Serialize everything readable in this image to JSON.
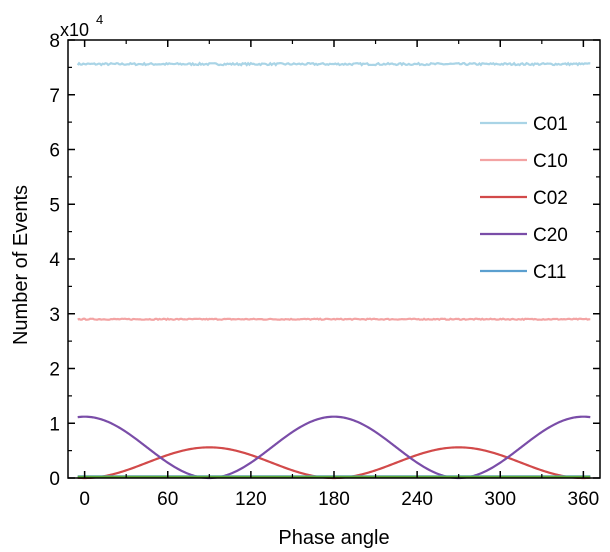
{
  "chart_data": {
    "type": "line",
    "title": "",
    "xlabel": "Phase angle",
    "ylabel": "Number of Events",
    "y_multiplier": {
      "base": "x10",
      "exponent": "4"
    },
    "xlim": [
      -12,
      372
    ],
    "ylim": [
      0,
      80000
    ],
    "xticks": [
      0,
      60,
      120,
      180,
      240,
      300,
      360
    ],
    "yticks": [
      0,
      10000,
      20000,
      30000,
      40000,
      50000,
      60000,
      70000,
      80000
    ],
    "ytick_labels": [
      "0",
      "1",
      "2",
      "3",
      "4",
      "5",
      "6",
      "7",
      "8"
    ],
    "x_range": [
      -5,
      365
    ],
    "legend_position": "right",
    "grid": false,
    "series": [
      {
        "name": "C01",
        "color": "#a9d4e6",
        "model": "constant",
        "params": {
          "value": 75600,
          "noise": 180
        }
      },
      {
        "name": "C10",
        "color": "#f3a3a3",
        "model": "constant",
        "params": {
          "value": 29000,
          "noise": 100
        }
      },
      {
        "name": "C02",
        "color": "#d24a4a",
        "model": "sin2",
        "params": {
          "amplitude": 5600,
          "offset": 0
        }
      },
      {
        "name": "C20",
        "color": "#7a4da8",
        "model": "cos2",
        "params": {
          "amplitude": 11200,
          "offset": 0
        }
      },
      {
        "name": "C11",
        "color": "#5b9fcf",
        "model": "constant",
        "params": {
          "value": 300,
          "noise": 0
        }
      }
    ],
    "baseline": {
      "color": "#5fae3a",
      "value": 0
    }
  }
}
